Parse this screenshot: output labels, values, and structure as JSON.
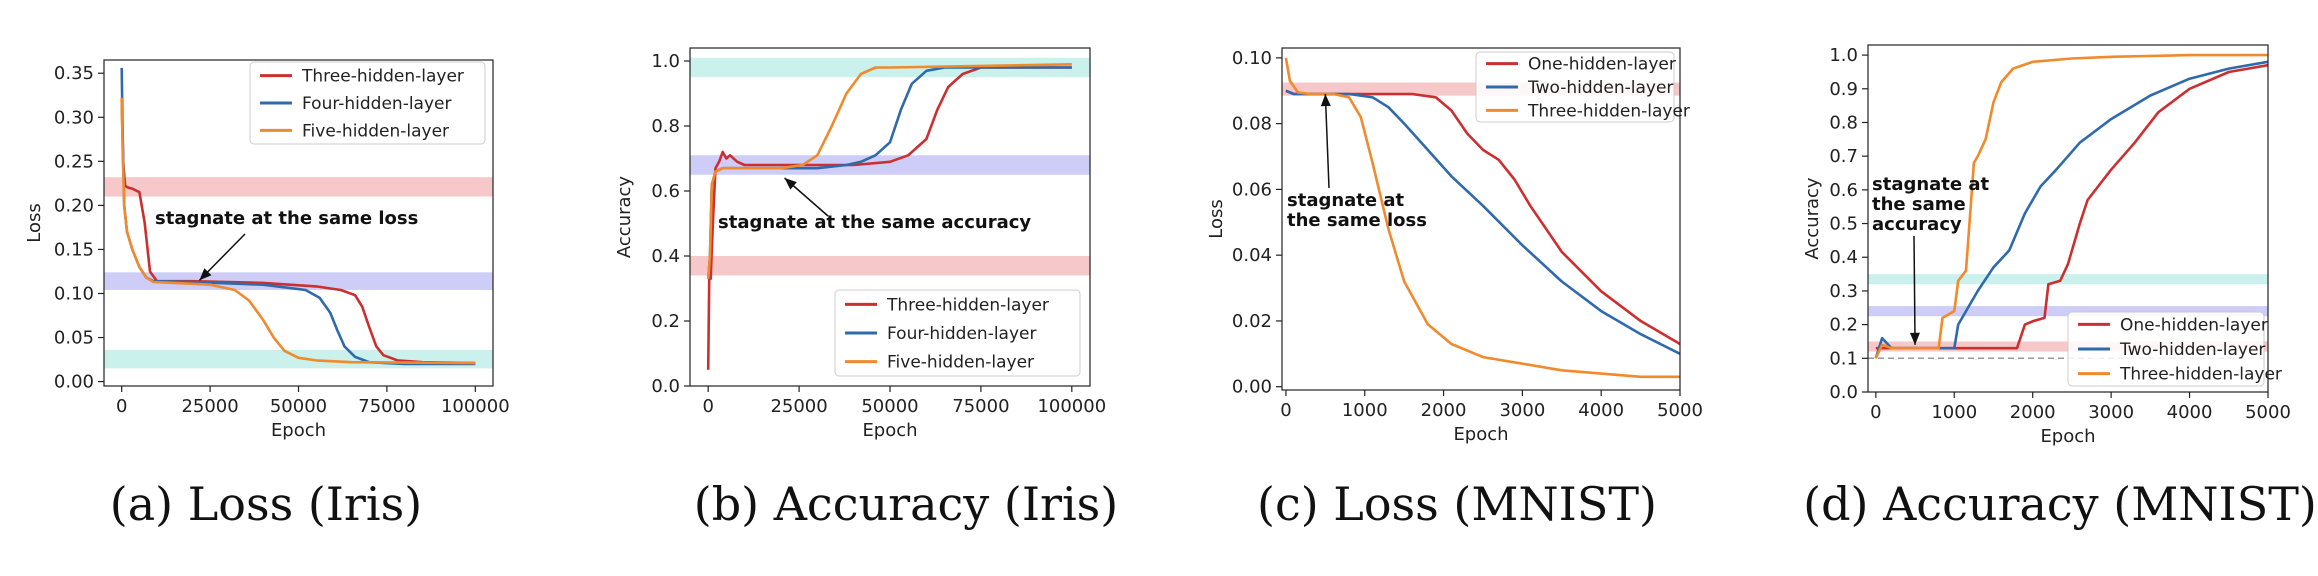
{
  "chart_data": [
    {
      "type": "line",
      "caption": "(a)  Loss (Iris)",
      "xlabel": "Epoch",
      "ylabel": "Loss",
      "xlim": [
        -5000,
        105000
      ],
      "ylim": [
        -0.005,
        0.365
      ],
      "xticks": [
        0,
        25000,
        50000,
        75000,
        100000
      ],
      "xtick_labels": [
        "0",
        "25000",
        "50000",
        "75000",
        "100000"
      ],
      "yticks": [
        0.0,
        0.05,
        0.1,
        0.15,
        0.2,
        0.25,
        0.3,
        0.35
      ],
      "ytick_labels": [
        "0.00",
        "0.05",
        "0.10",
        "0.15",
        "0.20",
        "0.25",
        "0.30",
        "0.35"
      ],
      "grid": false,
      "legend_position": "top-right",
      "bands": [
        {
          "y0": 0.21,
          "y1": 0.232,
          "color": "#f4b6b8"
        },
        {
          "y0": 0.104,
          "y1": 0.124,
          "color": "#bcbcf4"
        },
        {
          "y0": 0.015,
          "y1": 0.036,
          "color": "#b8ece6"
        }
      ],
      "series": [
        {
          "name": "Three-hidden-layer",
          "color": "#cc2f2f",
          "x": [
            0,
            400,
            1000,
            2000,
            3000,
            5000,
            6500,
            8000,
            10000,
            20000,
            40000,
            55000,
            62000,
            66000,
            68000,
            70000,
            72000,
            74000,
            78000,
            85000,
            100000
          ],
          "y": [
            0.32,
            0.25,
            0.222,
            0.22,
            0.219,
            0.215,
            0.18,
            0.125,
            0.114,
            0.114,
            0.112,
            0.108,
            0.104,
            0.098,
            0.085,
            0.062,
            0.04,
            0.03,
            0.024,
            0.022,
            0.021
          ]
        },
        {
          "name": "Four-hidden-layer",
          "color": "#2f6aac",
          "x": [
            0,
            300,
            700,
            1500,
            3000,
            5000,
            7000,
            9000,
            20000,
            40000,
            52000,
            56000,
            59000,
            61000,
            63000,
            66000,
            70000,
            80000,
            100000
          ],
          "y": [
            0.356,
            0.28,
            0.2,
            0.17,
            0.15,
            0.13,
            0.118,
            0.114,
            0.113,
            0.11,
            0.104,
            0.095,
            0.078,
            0.058,
            0.04,
            0.028,
            0.022,
            0.02,
            0.02
          ]
        },
        {
          "name": "Five-hidden-layer",
          "color": "#f08a2c",
          "x": [
            0,
            300,
            700,
            1500,
            3000,
            5000,
            7000,
            9000,
            15000,
            25000,
            32000,
            36000,
            40000,
            43000,
            46000,
            50000,
            55000,
            65000,
            100000
          ],
          "y": [
            0.322,
            0.26,
            0.2,
            0.17,
            0.15,
            0.13,
            0.118,
            0.113,
            0.112,
            0.11,
            0.104,
            0.092,
            0.07,
            0.05,
            0.035,
            0.027,
            0.024,
            0.022,
            0.021
          ]
        }
      ],
      "annotations": [
        {
          "text": "stagnate at the same loss",
          "x": 22000,
          "y": 0.115
        }
      ]
    },
    {
      "type": "line",
      "caption": "(b)  Accuracy (Iris)",
      "xlabel": "Epoch",
      "ylabel": "Accuracy",
      "xlim": [
        -5000,
        105000
      ],
      "ylim": [
        0.0,
        1.04
      ],
      "xticks": [
        0,
        25000,
        50000,
        75000,
        100000
      ],
      "xtick_labels": [
        "0",
        "25000",
        "50000",
        "75000",
        "100000"
      ],
      "yticks": [
        0.0,
        0.2,
        0.4,
        0.6,
        0.8,
        1.0
      ],
      "ytick_labels": [
        "0.0",
        "0.2",
        "0.4",
        "0.6",
        "0.8",
        "1.0"
      ],
      "grid": false,
      "legend_position": "bottom-right",
      "bands": [
        {
          "y0": 0.34,
          "y1": 0.4,
          "color": "#f4b6b8"
        },
        {
          "y0": 0.65,
          "y1": 0.71,
          "color": "#bcbcf4"
        },
        {
          "y0": 0.95,
          "y1": 1.01,
          "color": "#b8ece6"
        }
      ],
      "series": [
        {
          "name": "Three-hidden-layer",
          "color": "#cc2f2f",
          "x": [
            0,
            300,
            700,
            1000,
            1500,
            2000,
            3000,
            4000,
            5000,
            6000,
            8000,
            10000,
            20000,
            40000,
            50000,
            55000,
            60000,
            63000,
            66000,
            70000,
            75000,
            80000,
            100000
          ],
          "y": [
            0.05,
            0.35,
            0.33,
            0.42,
            0.55,
            0.67,
            0.69,
            0.72,
            0.7,
            0.71,
            0.69,
            0.68,
            0.68,
            0.68,
            0.69,
            0.71,
            0.76,
            0.85,
            0.92,
            0.96,
            0.98,
            0.98,
            0.98
          ]
        },
        {
          "name": "Four-hidden-layer",
          "color": "#2f6aac",
          "x": [
            0,
            500,
            1000,
            2000,
            4000,
            10000,
            30000,
            38000,
            42000,
            46000,
            50000,
            53000,
            56000,
            60000,
            65000,
            100000
          ],
          "y": [
            0.33,
            0.4,
            0.62,
            0.66,
            0.67,
            0.67,
            0.67,
            0.68,
            0.69,
            0.71,
            0.75,
            0.85,
            0.93,
            0.97,
            0.98,
            0.98
          ]
        },
        {
          "name": "Five-hidden-layer",
          "color": "#f08a2c",
          "x": [
            0,
            500,
            1000,
            2000,
            4000,
            10000,
            20000,
            26000,
            30000,
            34000,
            38000,
            42000,
            46000,
            50000,
            100000
          ],
          "y": [
            0.33,
            0.4,
            0.62,
            0.66,
            0.67,
            0.67,
            0.67,
            0.68,
            0.71,
            0.8,
            0.9,
            0.96,
            0.98,
            0.98,
            0.99
          ]
        }
      ],
      "annotations": [
        {
          "text": "stagnate at the same accuracy",
          "x": 21000,
          "y": 0.64
        }
      ]
    },
    {
      "type": "line",
      "caption": "(c)  Loss (MNIST)",
      "xlabel": "Epoch",
      "ylabel": "Loss",
      "xlim": [
        -50,
        5000
      ],
      "ylim": [
        -0.001,
        0.103
      ],
      "xticks": [
        0,
        1000,
        2000,
        3000,
        4000,
        5000
      ],
      "xtick_labels": [
        "0",
        "1000",
        "2000",
        "3000",
        "4000",
        "5000"
      ],
      "yticks": [
        0.0,
        0.02,
        0.04,
        0.06,
        0.08,
        0.1
      ],
      "ytick_labels": [
        "0.00",
        "0.02",
        "0.04",
        "0.06",
        "0.08",
        "0.10"
      ],
      "grid": false,
      "legend_position": "top-right",
      "bands": [
        {
          "y0": 0.0885,
          "y1": 0.0925,
          "color": "#f4b6b8"
        }
      ],
      "series": [
        {
          "name": "One-hidden-layer",
          "color": "#cc2f2f",
          "x": [
            0,
            100,
            300,
            1000,
            1600,
            1900,
            2100,
            2300,
            2500,
            2700,
            2900,
            3100,
            3500,
            4000,
            4500,
            5000
          ],
          "y": [
            0.09,
            0.089,
            0.089,
            0.089,
            0.089,
            0.088,
            0.084,
            0.077,
            0.072,
            0.069,
            0.063,
            0.055,
            0.041,
            0.029,
            0.02,
            0.013
          ]
        },
        {
          "name": "Two-hidden-layer",
          "color": "#2f6aac",
          "x": [
            0,
            100,
            300,
            800,
            1100,
            1300,
            1500,
            1800,
            2100,
            2500,
            3000,
            3500,
            4000,
            4500,
            5000
          ],
          "y": [
            0.09,
            0.089,
            0.089,
            0.089,
            0.088,
            0.085,
            0.08,
            0.072,
            0.064,
            0.055,
            0.043,
            0.032,
            0.023,
            0.016,
            0.01
          ]
        },
        {
          "name": "Three-hidden-layer",
          "color": "#f08a2c",
          "x": [
            0,
            50,
            150,
            300,
            600,
            800,
            950,
            1100,
            1300,
            1500,
            1800,
            2100,
            2500,
            3000,
            3500,
            4000,
            4500,
            5000
          ],
          "y": [
            0.1,
            0.093,
            0.0895,
            0.089,
            0.089,
            0.088,
            0.082,
            0.068,
            0.048,
            0.032,
            0.019,
            0.013,
            0.009,
            0.007,
            0.005,
            0.004,
            0.003,
            0.003
          ]
        }
      ],
      "annotations": [
        {
          "text": [
            "stagnate at",
            "the same loss"
          ],
          "x": 500,
          "y": 0.089
        }
      ]
    },
    {
      "type": "line",
      "caption": "(d)  Accuracy (MNIST)",
      "xlabel": "Epoch",
      "ylabel": "Accuracy",
      "xlim": [
        -100,
        5000
      ],
      "ylim": [
        0.0,
        1.03
      ],
      "xticks": [
        0,
        1000,
        2000,
        3000,
        4000,
        5000
      ],
      "xtick_labels": [
        "0",
        "1000",
        "2000",
        "3000",
        "4000",
        "5000"
      ],
      "yticks": [
        0.0,
        0.1,
        0.2,
        0.3,
        0.4,
        0.5,
        0.6,
        0.7,
        0.8,
        0.9,
        1.0
      ],
      "ytick_labels": [
        "0.0",
        "0.1",
        "0.2",
        "0.3",
        "0.4",
        "0.5",
        "0.6",
        "0.7",
        "0.8",
        "0.9",
        "1.0"
      ],
      "grid": false,
      "legend_position": "bottom-right",
      "baseline": 0.1,
      "bands": [
        {
          "y0": 0.32,
          "y1": 0.35,
          "color": "#b8ece6"
        },
        {
          "y0": 0.225,
          "y1": 0.255,
          "color": "#bcbcf4"
        },
        {
          "y0": 0.12,
          "y1": 0.15,
          "color": "#f4b6b8"
        }
      ],
      "series": [
        {
          "name": "One-hidden-layer",
          "color": "#cc2f2f",
          "x": [
            0,
            100,
            300,
            1000,
            1800,
            1900,
            2000,
            2150,
            2200,
            2350,
            2450,
            2600,
            2700,
            3000,
            3300,
            3600,
            4000,
            4500,
            5000
          ],
          "y": [
            0.13,
            0.13,
            0.13,
            0.13,
            0.13,
            0.2,
            0.21,
            0.22,
            0.32,
            0.33,
            0.38,
            0.5,
            0.57,
            0.66,
            0.74,
            0.83,
            0.9,
            0.95,
            0.97
          ]
        },
        {
          "name": "Two-hidden-layer",
          "color": "#2f6aac",
          "x": [
            0,
            80,
            200,
            1000,
            1050,
            1100,
            1300,
            1500,
            1700,
            1900,
            2100,
            2300,
            2600,
            3000,
            3500,
            4000,
            4500,
            5000
          ],
          "y": [
            0.1,
            0.16,
            0.13,
            0.13,
            0.2,
            0.22,
            0.3,
            0.37,
            0.42,
            0.53,
            0.61,
            0.66,
            0.74,
            0.81,
            0.88,
            0.93,
            0.96,
            0.98
          ]
        },
        {
          "name": "Three-hidden-layer",
          "color": "#f08a2c",
          "x": [
            0,
            80,
            200,
            800,
            850,
            1000,
            1050,
            1150,
            1250,
            1300,
            1400,
            1500,
            1600,
            1750,
            2000,
            2500,
            3000,
            4000,
            5000
          ],
          "y": [
            0.1,
            0.14,
            0.13,
            0.13,
            0.22,
            0.24,
            0.33,
            0.36,
            0.68,
            0.7,
            0.75,
            0.86,
            0.92,
            0.96,
            0.98,
            0.99,
            0.995,
            1.0,
            1.0
          ]
        }
      ],
      "annotations": [
        {
          "text": [
            "stagnate at",
            "the same",
            "accuracy"
          ],
          "x": 500,
          "y": 0.14
        }
      ]
    }
  ]
}
